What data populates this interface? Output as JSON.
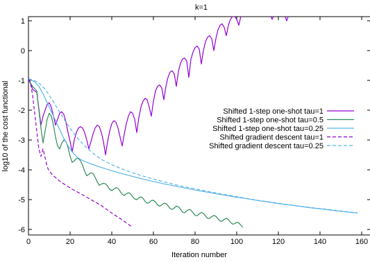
{
  "chart_data": {
    "type": "line",
    "title": "k=1",
    "xlabel": "Iteration number",
    "ylabel": "log10 of the cost functional",
    "xlim": [
      0,
      160
    ],
    "ylim": [
      -6.2,
      1.2
    ],
    "xticks": [
      "0",
      "20",
      "40",
      "60",
      "80",
      "100",
      "120",
      "140",
      "160"
    ],
    "yticks": [
      "1",
      "0",
      "-1",
      "-2",
      "-3",
      "-4",
      "-5",
      "-6"
    ],
    "legend_position": "right",
    "grid": false,
    "series": [
      {
        "name": "Shifted 1-step one-shot tau=1",
        "color": "#9400d3",
        "dash": "solid",
        "points": [
          [
            0,
            -0.9
          ],
          [
            2,
            -1.3
          ],
          [
            4,
            -1.4
          ],
          [
            6,
            -2.5
          ],
          [
            7,
            -2.2
          ],
          [
            9,
            -1.8
          ],
          [
            10,
            -1.75
          ],
          [
            11,
            -1.9
          ],
          [
            12,
            -2.2
          ],
          [
            13,
            -2.5
          ],
          [
            14,
            -2.3
          ],
          [
            15,
            -2.1
          ],
          [
            16,
            -2.05
          ],
          [
            17,
            -2.15
          ],
          [
            18,
            -2.4
          ],
          [
            19,
            -2.75
          ],
          [
            20,
            -3.05
          ],
          [
            21,
            -3.4
          ],
          [
            22,
            -3.0
          ],
          [
            23,
            -2.75
          ],
          [
            24,
            -2.6
          ],
          [
            25,
            -2.55
          ],
          [
            26,
            -2.6
          ],
          [
            27,
            -2.75
          ],
          [
            28,
            -3.0
          ],
          [
            29,
            -3.3
          ],
          [
            30,
            -3.05
          ],
          [
            31,
            -2.8
          ],
          [
            32,
            -2.6
          ],
          [
            33,
            -2.5
          ],
          [
            34,
            -2.55
          ],
          [
            35,
            -2.75
          ],
          [
            36,
            -3.05
          ],
          [
            37,
            -3.5
          ],
          [
            38,
            -3.05
          ],
          [
            39,
            -2.7
          ],
          [
            40,
            -2.45
          ],
          [
            41,
            -2.35
          ],
          [
            42,
            -2.4
          ],
          [
            43,
            -2.6
          ],
          [
            44,
            -2.9
          ],
          [
            45,
            -3.2
          ],
          [
            46,
            -2.8
          ],
          [
            47,
            -2.45
          ],
          [
            48,
            -2.2
          ],
          [
            49,
            -2.05
          ],
          [
            50,
            -2.1
          ],
          [
            51,
            -2.3
          ],
          [
            52,
            -2.75
          ],
          [
            53,
            -2.25
          ],
          [
            54,
            -1.9
          ],
          [
            55,
            -1.7
          ],
          [
            56,
            -1.6
          ],
          [
            57,
            -1.65
          ],
          [
            58,
            -1.9
          ],
          [
            59,
            -2.2
          ],
          [
            60,
            -1.7
          ],
          [
            61,
            -1.35
          ],
          [
            62,
            -1.2
          ],
          [
            63,
            -1.15
          ],
          [
            64,
            -1.25
          ],
          [
            65,
            -1.65
          ],
          [
            66,
            -1.2
          ],
          [
            67,
            -0.9
          ],
          [
            68,
            -0.72
          ],
          [
            69,
            -0.68
          ],
          [
            70,
            -0.78
          ],
          [
            71,
            -1.2
          ],
          [
            72,
            -0.7
          ],
          [
            73,
            -0.42
          ],
          [
            74,
            -0.28
          ],
          [
            75,
            -0.25
          ],
          [
            76,
            -0.35
          ],
          [
            77,
            -0.9
          ],
          [
            78,
            -0.3
          ],
          [
            79,
            -0.05
          ],
          [
            80,
            0.1
          ],
          [
            81,
            0.15
          ],
          [
            82,
            0.05
          ],
          [
            83,
            -0.45
          ],
          [
            84,
            0.0
          ],
          [
            85,
            0.3
          ],
          [
            86,
            0.45
          ],
          [
            87,
            0.5
          ],
          [
            88,
            0.4
          ],
          [
            89,
            0.0
          ],
          [
            90,
            0.4
          ],
          [
            91,
            0.7
          ],
          [
            92,
            0.85
          ],
          [
            93,
            0.9
          ],
          [
            94,
            0.78
          ],
          [
            95,
            0.5
          ],
          [
            96,
            0.85
          ],
          [
            97,
            1.05
          ],
          [
            98,
            1.15
          ],
          [
            99,
            1.15
          ],
          [
            100,
            1.05
          ],
          [
            101,
            0.85
          ],
          [
            102,
            1.15
          ],
          [
            103,
            1.2
          ],
          [
            116,
            1.2
          ],
          [
            117,
            1.05
          ],
          [
            118,
            1.2
          ],
          [
            123,
            1.2
          ],
          [
            124,
            1.0
          ],
          [
            125,
            1.2
          ]
        ]
      },
      {
        "name": "Shifted 1-step one-shot tau=0.5",
        "color": "#2e8b57",
        "dash": "solid",
        "points": [
          [
            0,
            -1.0
          ],
          [
            2,
            -1.2
          ],
          [
            4,
            -1.35
          ],
          [
            5,
            -2.0
          ],
          [
            6,
            -2.6
          ],
          [
            7,
            -3.1
          ],
          [
            8,
            -2.7
          ],
          [
            9,
            -2.3
          ],
          [
            10,
            -2.1
          ],
          [
            11,
            -2.2
          ],
          [
            12,
            -2.5
          ],
          [
            13,
            -2.9
          ],
          [
            14,
            -3.2
          ],
          [
            15,
            -3.3
          ],
          [
            16,
            -3.1
          ],
          [
            17,
            -3.0
          ],
          [
            18,
            -3.05
          ],
          [
            19,
            -3.25
          ],
          [
            20,
            -3.55
          ],
          [
            21,
            -3.75
          ],
          [
            22,
            -3.7
          ],
          [
            23,
            -3.62
          ],
          [
            24,
            -3.62
          ],
          [
            25,
            -3.7
          ],
          [
            26,
            -3.85
          ],
          [
            27,
            -4.05
          ],
          [
            28,
            -4.2
          ],
          [
            29,
            -4.15
          ],
          [
            30,
            -4.1
          ],
          [
            31,
            -4.12
          ],
          [
            32,
            -4.25
          ],
          [
            33,
            -4.4
          ],
          [
            34,
            -4.52
          ],
          [
            35,
            -4.48
          ],
          [
            36,
            -4.45
          ],
          [
            37,
            -4.47
          ],
          [
            38,
            -4.55
          ],
          [
            39,
            -4.65
          ],
          [
            40,
            -4.7
          ],
          [
            41,
            -4.65
          ],
          [
            42,
            -4.6
          ],
          [
            43,
            -4.62
          ],
          [
            44,
            -4.72
          ],
          [
            45,
            -4.82
          ],
          [
            46,
            -4.86
          ],
          [
            47,
            -4.8
          ],
          [
            48,
            -4.77
          ],
          [
            49,
            -4.8
          ],
          [
            50,
            -4.9
          ],
          [
            51,
            -4.98
          ],
          [
            52,
            -5.0
          ],
          [
            53,
            -4.94
          ],
          [
            54,
            -4.91
          ],
          [
            55,
            -4.95
          ],
          [
            56,
            -5.06
          ],
          [
            57,
            -5.12
          ],
          [
            58,
            -5.1
          ],
          [
            59,
            -5.03
          ],
          [
            60,
            -5.02
          ],
          [
            61,
            -5.08
          ],
          [
            62,
            -5.18
          ],
          [
            63,
            -5.22
          ],
          [
            64,
            -5.18
          ],
          [
            65,
            -5.12
          ],
          [
            66,
            -5.13
          ],
          [
            67,
            -5.2
          ],
          [
            68,
            -5.3
          ],
          [
            69,
            -5.33
          ],
          [
            70,
            -5.28
          ],
          [
            71,
            -5.22
          ],
          [
            72,
            -5.24
          ],
          [
            73,
            -5.32
          ],
          [
            74,
            -5.42
          ],
          [
            75,
            -5.44
          ],
          [
            76,
            -5.38
          ],
          [
            77,
            -5.33
          ],
          [
            78,
            -5.35
          ],
          [
            79,
            -5.44
          ],
          [
            80,
            -5.53
          ],
          [
            81,
            -5.54
          ],
          [
            82,
            -5.48
          ],
          [
            83,
            -5.43
          ],
          [
            84,
            -5.46
          ],
          [
            85,
            -5.55
          ],
          [
            86,
            -5.63
          ],
          [
            87,
            -5.63
          ],
          [
            88,
            -5.57
          ],
          [
            89,
            -5.53
          ],
          [
            90,
            -5.56
          ],
          [
            91,
            -5.65
          ],
          [
            92,
            -5.72
          ],
          [
            93,
            -5.72
          ],
          [
            94,
            -5.66
          ],
          [
            95,
            -5.63
          ],
          [
            96,
            -5.67
          ],
          [
            97,
            -5.76
          ],
          [
            98,
            -5.82
          ],
          [
            99,
            -5.81
          ],
          [
            100,
            -5.76
          ],
          [
            101,
            -5.78
          ],
          [
            102,
            -5.86
          ],
          [
            103,
            -5.93
          ]
        ]
      },
      {
        "name": "Shifted 1-step one-shot tau=0.25",
        "color": "#56b4e9",
        "dash": "solid",
        "points": [
          [
            0,
            -0.95
          ],
          [
            3,
            -1.05
          ],
          [
            5,
            -1.2
          ],
          [
            7,
            -1.45
          ],
          [
            9,
            -1.75
          ],
          [
            11,
            -2.05
          ],
          [
            13,
            -2.35
          ],
          [
            15,
            -2.65
          ],
          [
            17,
            -2.95
          ],
          [
            19,
            -3.2
          ],
          [
            21,
            -3.4
          ],
          [
            23,
            -3.55
          ],
          [
            25,
            -3.65
          ],
          [
            27,
            -3.72
          ],
          [
            30,
            -3.8
          ],
          [
            35,
            -3.92
          ],
          [
            40,
            -4.03
          ],
          [
            45,
            -4.13
          ],
          [
            50,
            -4.22
          ],
          [
            55,
            -4.31
          ],
          [
            60,
            -4.39
          ],
          [
            65,
            -4.47
          ],
          [
            70,
            -4.54
          ],
          [
            75,
            -4.61
          ],
          [
            80,
            -4.68
          ],
          [
            85,
            -4.74
          ],
          [
            90,
            -4.8
          ],
          [
            95,
            -4.86
          ],
          [
            100,
            -4.92
          ],
          [
            105,
            -4.97
          ],
          [
            110,
            -5.03
          ],
          [
            115,
            -5.08
          ],
          [
            120,
            -5.13
          ],
          [
            125,
            -5.18
          ],
          [
            130,
            -5.22
          ],
          [
            135,
            -5.27
          ],
          [
            140,
            -5.31
          ],
          [
            145,
            -5.35
          ],
          [
            150,
            -5.39
          ],
          [
            155,
            -5.43
          ],
          [
            158,
            -5.45
          ]
        ]
      },
      {
        "name": "Shifted gradient descent tau=1",
        "color": "#9400d3",
        "dash": "dashed",
        "points": [
          [
            0,
            -0.95
          ],
          [
            1,
            -1.1
          ],
          [
            2,
            -1.5
          ],
          [
            3,
            -2.1
          ],
          [
            4,
            -2.7
          ],
          [
            5,
            -3.3
          ],
          [
            6,
            -3.55
          ],
          [
            7,
            -3.3
          ],
          [
            8,
            -3.6
          ],
          [
            9,
            -3.9
          ],
          [
            10,
            -4.05
          ],
          [
            12,
            -4.2
          ],
          [
            15,
            -4.38
          ],
          [
            18,
            -4.52
          ],
          [
            21,
            -4.65
          ],
          [
            25,
            -4.8
          ],
          [
            30,
            -5.0
          ],
          [
            35,
            -5.2
          ],
          [
            40,
            -5.45
          ],
          [
            45,
            -5.68
          ],
          [
            50,
            -5.93
          ]
        ]
      },
      {
        "name": "Shifted gradient descent tau=0.25",
        "color": "#56b4e9",
        "dash": "dashed",
        "points": [
          [
            0,
            -0.95
          ],
          [
            2,
            -0.98
          ],
          [
            4,
            -1.05
          ],
          [
            6,
            -1.15
          ],
          [
            8,
            -1.3
          ],
          [
            10,
            -1.5
          ],
          [
            12,
            -1.72
          ],
          [
            14,
            -1.95
          ],
          [
            16,
            -2.18
          ],
          [
            18,
            -2.4
          ],
          [
            20,
            -2.6
          ],
          [
            22,
            -2.8
          ],
          [
            24,
            -2.97
          ],
          [
            26,
            -3.12
          ],
          [
            28,
            -3.26
          ],
          [
            30,
            -3.38
          ],
          [
            32,
            -3.5
          ],
          [
            35,
            -3.65
          ],
          [
            40,
            -3.83
          ],
          [
            45,
            -3.97
          ],
          [
            50,
            -4.1
          ],
          [
            55,
            -4.21
          ],
          [
            60,
            -4.31
          ],
          [
            65,
            -4.4
          ],
          [
            70,
            -4.49
          ],
          [
            75,
            -4.57
          ],
          [
            80,
            -4.64
          ],
          [
            85,
            -4.71
          ],
          [
            90,
            -4.78
          ],
          [
            95,
            -4.84
          ],
          [
            100,
            -4.9
          ],
          [
            105,
            -4.96
          ],
          [
            110,
            -5.02
          ],
          [
            115,
            -5.07
          ],
          [
            120,
            -5.12
          ],
          [
            125,
            -5.17
          ],
          [
            130,
            -5.22
          ],
          [
            135,
            -5.26
          ],
          [
            140,
            -5.3
          ],
          [
            145,
            -5.34
          ],
          [
            150,
            -5.38
          ],
          [
            155,
            -5.42
          ],
          [
            158,
            -5.44
          ]
        ]
      }
    ]
  }
}
